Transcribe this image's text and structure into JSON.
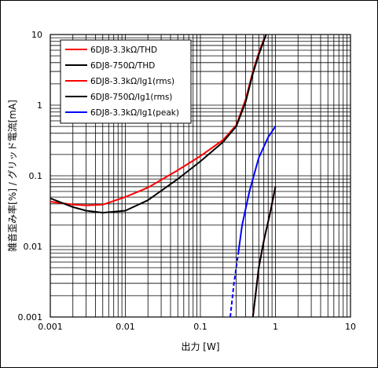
{
  "chart_data": {
    "type": "line",
    "x_scale": "log",
    "y_scale": "log",
    "xlim": [
      0.001,
      10
    ],
    "ylim": [
      0.001,
      10
    ],
    "grid": true,
    "legend_position": "top-left",
    "xlabel": "出力 [W]",
    "ylabel": "雑音歪み率[%] / グリッド電流[mA]",
    "x_ticks": [
      "0.001",
      "0.01",
      "0.1",
      "1",
      "10"
    ],
    "y_ticks": [
      "0.001",
      "0.01",
      "0.1",
      "1",
      "10"
    ],
    "series": [
      {
        "name": "6DJ8-3.3kΩ/THD",
        "color": "#ff0000",
        "style": "solid",
        "points": [
          [
            0.001,
            0.043
          ],
          [
            0.002,
            0.039
          ],
          [
            0.003,
            0.038
          ],
          [
            0.005,
            0.039
          ],
          [
            0.01,
            0.05
          ],
          [
            0.02,
            0.068
          ],
          [
            0.05,
            0.12
          ],
          [
            0.1,
            0.19
          ],
          [
            0.2,
            0.32
          ],
          [
            0.3,
            0.52
          ],
          [
            0.4,
            1.2
          ],
          [
            0.5,
            3.0
          ],
          [
            0.6,
            5.5
          ],
          [
            0.7,
            8.5
          ],
          [
            0.75,
            10
          ]
        ]
      },
      {
        "name": "6DJ8-750Ω/THD",
        "color": "#000000",
        "style": "solid",
        "points": [
          [
            0.001,
            0.048
          ],
          [
            0.002,
            0.036
          ],
          [
            0.003,
            0.032
          ],
          [
            0.005,
            0.03
          ],
          [
            0.01,
            0.032
          ],
          [
            0.02,
            0.045
          ],
          [
            0.05,
            0.09
          ],
          [
            0.1,
            0.16
          ],
          [
            0.2,
            0.3
          ],
          [
            0.3,
            0.5
          ],
          [
            0.4,
            1.1
          ],
          [
            0.5,
            2.8
          ],
          [
            0.6,
            5.2
          ],
          [
            0.7,
            8.2
          ],
          [
            0.75,
            10
          ]
        ]
      },
      {
        "name": "6DJ8-3.3kΩ/Ig1(rms)",
        "color": "#ff0000",
        "style": "solid",
        "points": [
          [
            0.5,
            0.001
          ],
          [
            0.6,
            0.005
          ],
          [
            0.7,
            0.012
          ],
          [
            0.85,
            0.03
          ],
          [
            1.0,
            0.07
          ]
        ]
      },
      {
        "name": "6DJ8-750Ω/Ig1(rms)",
        "color": "#000000",
        "style": "solid",
        "points": [
          [
            0.5,
            0.001
          ],
          [
            0.6,
            0.005
          ],
          [
            0.7,
            0.012
          ],
          [
            0.85,
            0.03
          ],
          [
            1.0,
            0.07
          ]
        ]
      },
      {
        "name": "6DJ8-3.3kΩ/Ig1(peak)",
        "color": "#0000ff",
        "style": "solid",
        "dashed_points": [
          [
            0.25,
            0.001
          ],
          [
            0.28,
            0.003
          ],
          [
            0.32,
            0.008
          ]
        ],
        "points": [
          [
            0.32,
            0.008
          ],
          [
            0.36,
            0.02
          ],
          [
            0.45,
            0.06
          ],
          [
            0.6,
            0.18
          ],
          [
            0.8,
            0.35
          ],
          [
            1.0,
            0.5
          ]
        ]
      }
    ]
  }
}
